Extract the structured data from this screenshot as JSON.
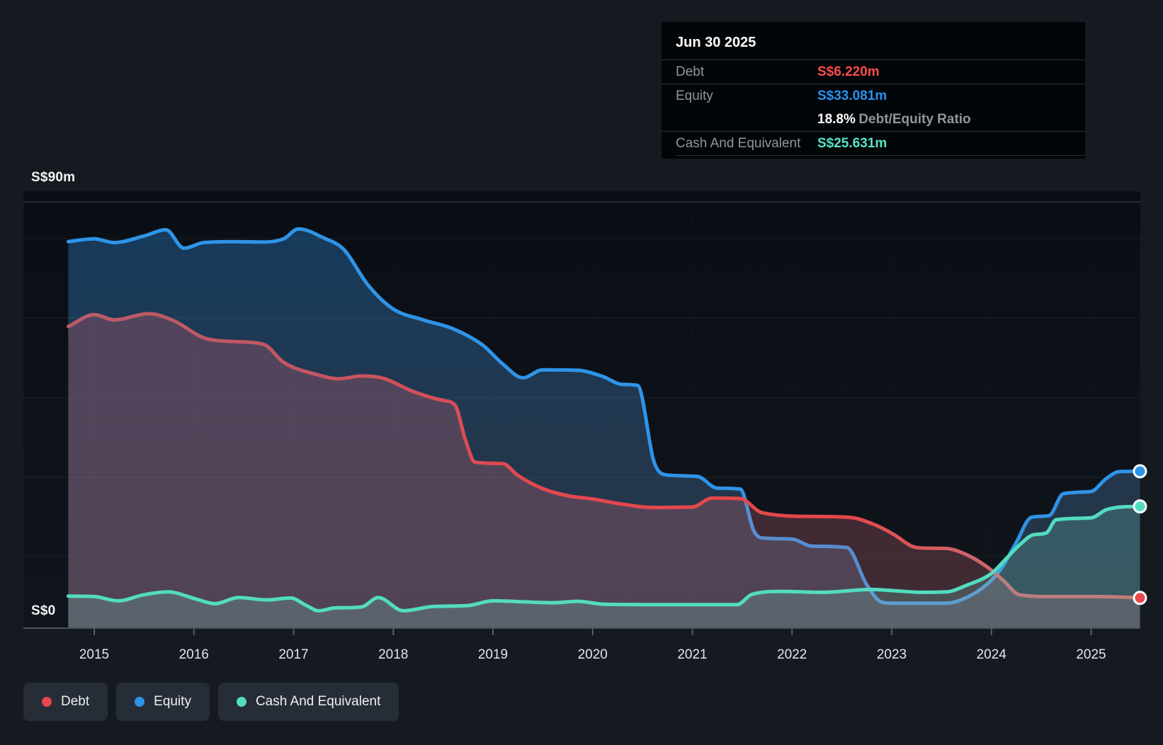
{
  "tooltip": {
    "title": "Jun 30 2025",
    "debt_label": "Debt",
    "debt_value": "S$6.220m",
    "equity_label": "Equity",
    "equity_value": "S$33.081m",
    "ratio_value": "18.8%",
    "ratio_label": "Debt/Equity Ratio",
    "cash_label": "Cash And Equivalent",
    "cash_value": "S$25.631m"
  },
  "legend": {
    "items": [
      {
        "label": "Debt",
        "color": "#e8474e"
      },
      {
        "label": "Equity",
        "color": "#2e94e8"
      },
      {
        "label": "Cash And Equivalent",
        "color": "#53dcc0"
      }
    ]
  },
  "colors": {
    "debt": "#e8474e",
    "equity": "#2e94e8",
    "cash": "#53dcc0",
    "tooltip_debt": "#f94c4c",
    "tooltip_equity": "#2994ef",
    "tooltip_cash": "#55e4c6",
    "axis_line": "#4a525a",
    "page_bg": "#151a21",
    "plot_bg": "#0b0f15"
  },
  "chart_data": {
    "type": "area",
    "title": "",
    "xlabel": "",
    "ylabel": "",
    "currency_unit": "S$ millions",
    "x_range": [
      2014.74,
      2025.49
    ],
    "ylim": [
      0,
      90
    ],
    "grid": "horizontal-faint",
    "legend_position": "bottom-left",
    "y_axis": {
      "top_label": "S$90m",
      "zero_label": "S$0"
    },
    "x_ticks": [
      2015,
      2016,
      2017,
      2018,
      2019,
      2020,
      2021,
      2022,
      2023,
      2024,
      2025
    ],
    "series": [
      {
        "name": "Equity",
        "color": "#2e94e8",
        "fill_top": "rgba(35,132,216,0.38)",
        "fill_bottom": "rgba(120,158,205,0.22)",
        "end_value": 33.081,
        "points": [
          [
            2014.74,
            81.8
          ],
          [
            2015.0,
            82.4
          ],
          [
            2015.2,
            81.6
          ],
          [
            2015.5,
            83.0
          ],
          [
            2015.72,
            84.3
          ],
          [
            2015.9,
            80.4
          ],
          [
            2016.1,
            81.6
          ],
          [
            2016.4,
            81.8
          ],
          [
            2016.7,
            81.7
          ],
          [
            2016.9,
            82.4
          ],
          [
            2017.05,
            84.5
          ],
          [
            2017.3,
            82.6
          ],
          [
            2017.5,
            80.2
          ],
          [
            2017.75,
            72.5
          ],
          [
            2018.0,
            67.5
          ],
          [
            2018.3,
            65.2
          ],
          [
            2018.6,
            63.3
          ],
          [
            2018.9,
            59.8
          ],
          [
            2019.1,
            55.8
          ],
          [
            2019.3,
            52.9
          ],
          [
            2019.5,
            54.6
          ],
          [
            2019.85,
            54.5
          ],
          [
            2020.1,
            53.2
          ],
          [
            2020.3,
            51.5
          ],
          [
            2020.45,
            51.3
          ],
          [
            2020.62,
            34.8
          ],
          [
            2020.75,
            32.3
          ],
          [
            2021.05,
            32.0
          ],
          [
            2021.25,
            29.5
          ],
          [
            2021.48,
            29.3
          ],
          [
            2021.62,
            20.3
          ],
          [
            2021.72,
            18.9
          ],
          [
            2022.0,
            18.7
          ],
          [
            2022.2,
            17.2
          ],
          [
            2022.55,
            16.9
          ],
          [
            2022.75,
            9.0
          ],
          [
            2022.9,
            5.3
          ],
          [
            2023.0,
            5.1
          ],
          [
            2023.55,
            5.1
          ],
          [
            2023.75,
            6.3
          ],
          [
            2023.95,
            9.0
          ],
          [
            2024.1,
            12.5
          ],
          [
            2024.25,
            18.0
          ],
          [
            2024.4,
            23.3
          ],
          [
            2024.58,
            23.7
          ],
          [
            2024.72,
            28.3
          ],
          [
            2025.0,
            28.8
          ],
          [
            2025.15,
            31.5
          ],
          [
            2025.28,
            33.0
          ],
          [
            2025.49,
            33.081
          ]
        ]
      },
      {
        "name": "Debt",
        "color": "#e8474e",
        "stroke_stops": [
          [
            "0%",
            "#bb5c68"
          ],
          [
            "22%",
            "#c25663"
          ],
          [
            "42%",
            "#e24950"
          ],
          [
            "72%",
            "#e54747"
          ],
          [
            "86%",
            "#cc686d"
          ],
          [
            "100%",
            "#d6615f"
          ]
        ],
        "fill_top": "rgba(224,86,96,0.30)",
        "fill_bottom": "rgba(224,122,140,0.22)",
        "end_value": 6.22,
        "points": [
          [
            2014.74,
            63.8
          ],
          [
            2015.0,
            66.3
          ],
          [
            2015.2,
            65.2
          ],
          [
            2015.55,
            66.5
          ],
          [
            2015.8,
            65.0
          ],
          [
            2016.1,
            61.4
          ],
          [
            2016.4,
            60.6
          ],
          [
            2016.7,
            60.0
          ],
          [
            2016.9,
            56.2
          ],
          [
            2017.25,
            53.5
          ],
          [
            2017.45,
            52.7
          ],
          [
            2017.68,
            53.3
          ],
          [
            2017.9,
            52.8
          ],
          [
            2018.2,
            50.0
          ],
          [
            2018.5,
            48.1
          ],
          [
            2018.62,
            47.1
          ],
          [
            2018.72,
            40.0
          ],
          [
            2018.82,
            35.0
          ],
          [
            2019.1,
            34.7
          ],
          [
            2019.25,
            32.2
          ],
          [
            2019.5,
            29.4
          ],
          [
            2019.75,
            27.9
          ],
          [
            2020.0,
            27.2
          ],
          [
            2020.3,
            26.1
          ],
          [
            2020.6,
            25.4
          ],
          [
            2021.0,
            25.5
          ],
          [
            2021.2,
            27.4
          ],
          [
            2021.48,
            27.3
          ],
          [
            2021.7,
            24.3
          ],
          [
            2022.2,
            23.5
          ],
          [
            2022.58,
            23.3
          ],
          [
            2022.8,
            22.0
          ],
          [
            2023.02,
            19.7
          ],
          [
            2023.2,
            17.2
          ],
          [
            2023.3,
            16.8
          ],
          [
            2023.55,
            16.7
          ],
          [
            2023.75,
            15.4
          ],
          [
            2023.95,
            12.9
          ],
          [
            2024.12,
            9.9
          ],
          [
            2024.28,
            6.9
          ],
          [
            2024.6,
            6.5
          ],
          [
            2025.0,
            6.5
          ],
          [
            2025.3,
            6.4
          ],
          [
            2025.49,
            6.22
          ]
        ]
      },
      {
        "name": "Cash And Equivalent",
        "color": "#53dcc0",
        "fill_top": "rgba(82,214,194,0.28)",
        "fill_bottom": "rgba(125,212,196,0.22)",
        "end_value": 25.631,
        "points": [
          [
            2014.74,
            6.6
          ],
          [
            2015.0,
            6.5
          ],
          [
            2015.24,
            5.6
          ],
          [
            2015.5,
            6.9
          ],
          [
            2015.74,
            7.5
          ],
          [
            2016.02,
            6.0
          ],
          [
            2016.21,
            5.0
          ],
          [
            2016.45,
            6.3
          ],
          [
            2016.73,
            5.8
          ],
          [
            2016.97,
            6.2
          ],
          [
            2017.13,
            4.6
          ],
          [
            2017.25,
            3.5
          ],
          [
            2017.42,
            4.1
          ],
          [
            2017.68,
            4.3
          ],
          [
            2017.85,
            6.3
          ],
          [
            2018.1,
            3.5
          ],
          [
            2018.4,
            4.4
          ],
          [
            2018.75,
            4.6
          ],
          [
            2019.0,
            5.6
          ],
          [
            2019.3,
            5.4
          ],
          [
            2019.6,
            5.2
          ],
          [
            2019.85,
            5.5
          ],
          [
            2020.1,
            4.9
          ],
          [
            2020.5,
            4.8
          ],
          [
            2021.0,
            4.8
          ],
          [
            2021.45,
            4.8
          ],
          [
            2021.6,
            7.0
          ],
          [
            2021.9,
            7.6
          ],
          [
            2022.3,
            7.4
          ],
          [
            2022.8,
            8.0
          ],
          [
            2023.05,
            7.7
          ],
          [
            2023.3,
            7.4
          ],
          [
            2023.55,
            7.5
          ],
          [
            2023.75,
            8.9
          ],
          [
            2024.0,
            11.4
          ],
          [
            2024.15,
            14.6
          ],
          [
            2024.3,
            17.8
          ],
          [
            2024.42,
            19.6
          ],
          [
            2024.55,
            20.0
          ],
          [
            2024.65,
            22.8
          ],
          [
            2025.0,
            23.2
          ],
          [
            2025.15,
            24.9
          ],
          [
            2025.3,
            25.5
          ],
          [
            2025.49,
            25.631
          ]
        ]
      }
    ]
  }
}
